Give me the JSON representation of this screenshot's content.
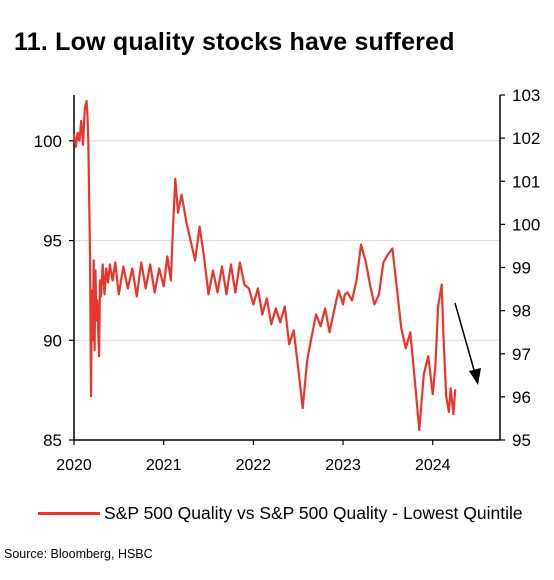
{
  "title": "11. Low quality stocks have suffered",
  "source": "Source: Bloomberg, HSBC",
  "colors": {
    "series": "#e8362c",
    "grid": "#d9d9d9",
    "axis": "#000000",
    "arrow": "#000000"
  },
  "chart_data": {
    "type": "line",
    "title": "11. Low quality stocks have suffered",
    "xlabel": "",
    "ylabel": "",
    "x_ticks": [
      "2020",
      "2021",
      "2022",
      "2023",
      "2024"
    ],
    "xlim": [
      2020.0,
      2024.75
    ],
    "y_left": {
      "ticks": [
        85,
        90,
        95,
        100
      ],
      "range": [
        85,
        102.3
      ]
    },
    "y_right": {
      "ticks": [
        95,
        96,
        97,
        98,
        99,
        100,
        101,
        102,
        103
      ],
      "range": [
        95,
        103
      ]
    },
    "grid": "horizontal",
    "legend_position": "bottom",
    "annotation": "downward arrow",
    "series": [
      {
        "name": "S&P 500 Quality vs S&P 500 Quality - Lowest Quintile",
        "axis": "left",
        "x": [
          2020.0,
          2020.02,
          2020.04,
          2020.06,
          2020.08,
          2020.1,
          2020.12,
          2020.14,
          2020.15,
          2020.16,
          2020.17,
          2020.18,
          2020.19,
          2020.2,
          2020.21,
          2020.22,
          2020.23,
          2020.24,
          2020.25,
          2020.26,
          2020.27,
          2020.28,
          2020.29,
          2020.3,
          2020.32,
          2020.34,
          2020.36,
          2020.38,
          2020.4,
          2020.43,
          2020.46,
          2020.5,
          2020.55,
          2020.6,
          2020.65,
          2020.7,
          2020.75,
          2020.8,
          2020.85,
          2020.9,
          2020.95,
          2021.0,
          2021.04,
          2021.08,
          2021.1,
          2021.13,
          2021.16,
          2021.2,
          2021.25,
          2021.3,
          2021.35,
          2021.4,
          2021.45,
          2021.5,
          2021.55,
          2021.6,
          2021.65,
          2021.7,
          2021.75,
          2021.8,
          2021.85,
          2021.9,
          2021.95,
          2022.0,
          2022.05,
          2022.1,
          2022.15,
          2022.2,
          2022.25,
          2022.3,
          2022.35,
          2022.4,
          2022.45,
          2022.5,
          2022.55,
          2022.6,
          2022.65,
          2022.7,
          2022.75,
          2022.8,
          2022.85,
          2022.9,
          2022.95,
          2023.0,
          2023.02,
          2023.05,
          2023.1,
          2023.15,
          2023.2,
          2023.25,
          2023.3,
          2023.35,
          2023.4,
          2023.45,
          2023.5,
          2023.55,
          2023.6,
          2023.65,
          2023.7,
          2023.75,
          2023.8,
          2023.85,
          2023.9,
          2023.95,
          2024.0,
          2024.03,
          2024.06,
          2024.1,
          2024.12,
          2024.15,
          2024.18,
          2024.2,
          2024.23,
          2024.25
        ],
        "values": [
          100.3,
          99.7,
          100.4,
          100.0,
          101.0,
          99.8,
          101.6,
          102.0,
          101.2,
          100.0,
          97.0,
          94.0,
          87.2,
          92.5,
          90.0,
          94.0,
          89.5,
          93.5,
          91.0,
          92.0,
          90.5,
          89.2,
          93.0,
          92.2,
          93.8,
          92.3,
          93.6,
          92.9,
          93.8,
          93.0,
          93.9,
          92.3,
          93.7,
          92.6,
          93.6,
          92.2,
          93.9,
          92.6,
          93.8,
          92.4,
          93.6,
          92.7,
          94.2,
          93.0,
          95.3,
          98.1,
          96.4,
          97.3,
          96.0,
          95.0,
          94.0,
          95.7,
          94.2,
          92.3,
          93.5,
          92.4,
          93.7,
          92.3,
          93.8,
          92.4,
          93.9,
          92.8,
          92.6,
          91.8,
          92.6,
          91.3,
          92.1,
          90.8,
          91.6,
          90.9,
          91.7,
          89.8,
          90.5,
          88.6,
          86.6,
          89.0,
          90.2,
          91.3,
          90.7,
          91.6,
          90.4,
          91.5,
          92.5,
          91.8,
          92.3,
          92.4,
          92.0,
          93.0,
          94.8,
          94.0,
          92.8,
          91.8,
          92.3,
          93.9,
          94.3,
          94.6,
          92.6,
          90.6,
          89.6,
          90.4,
          88.0,
          85.5,
          88.3,
          89.2,
          87.3,
          88.7,
          91.7,
          92.8,
          90.2,
          87.2,
          86.4,
          87.6,
          86.3,
          87.5
        ]
      }
    ]
  }
}
